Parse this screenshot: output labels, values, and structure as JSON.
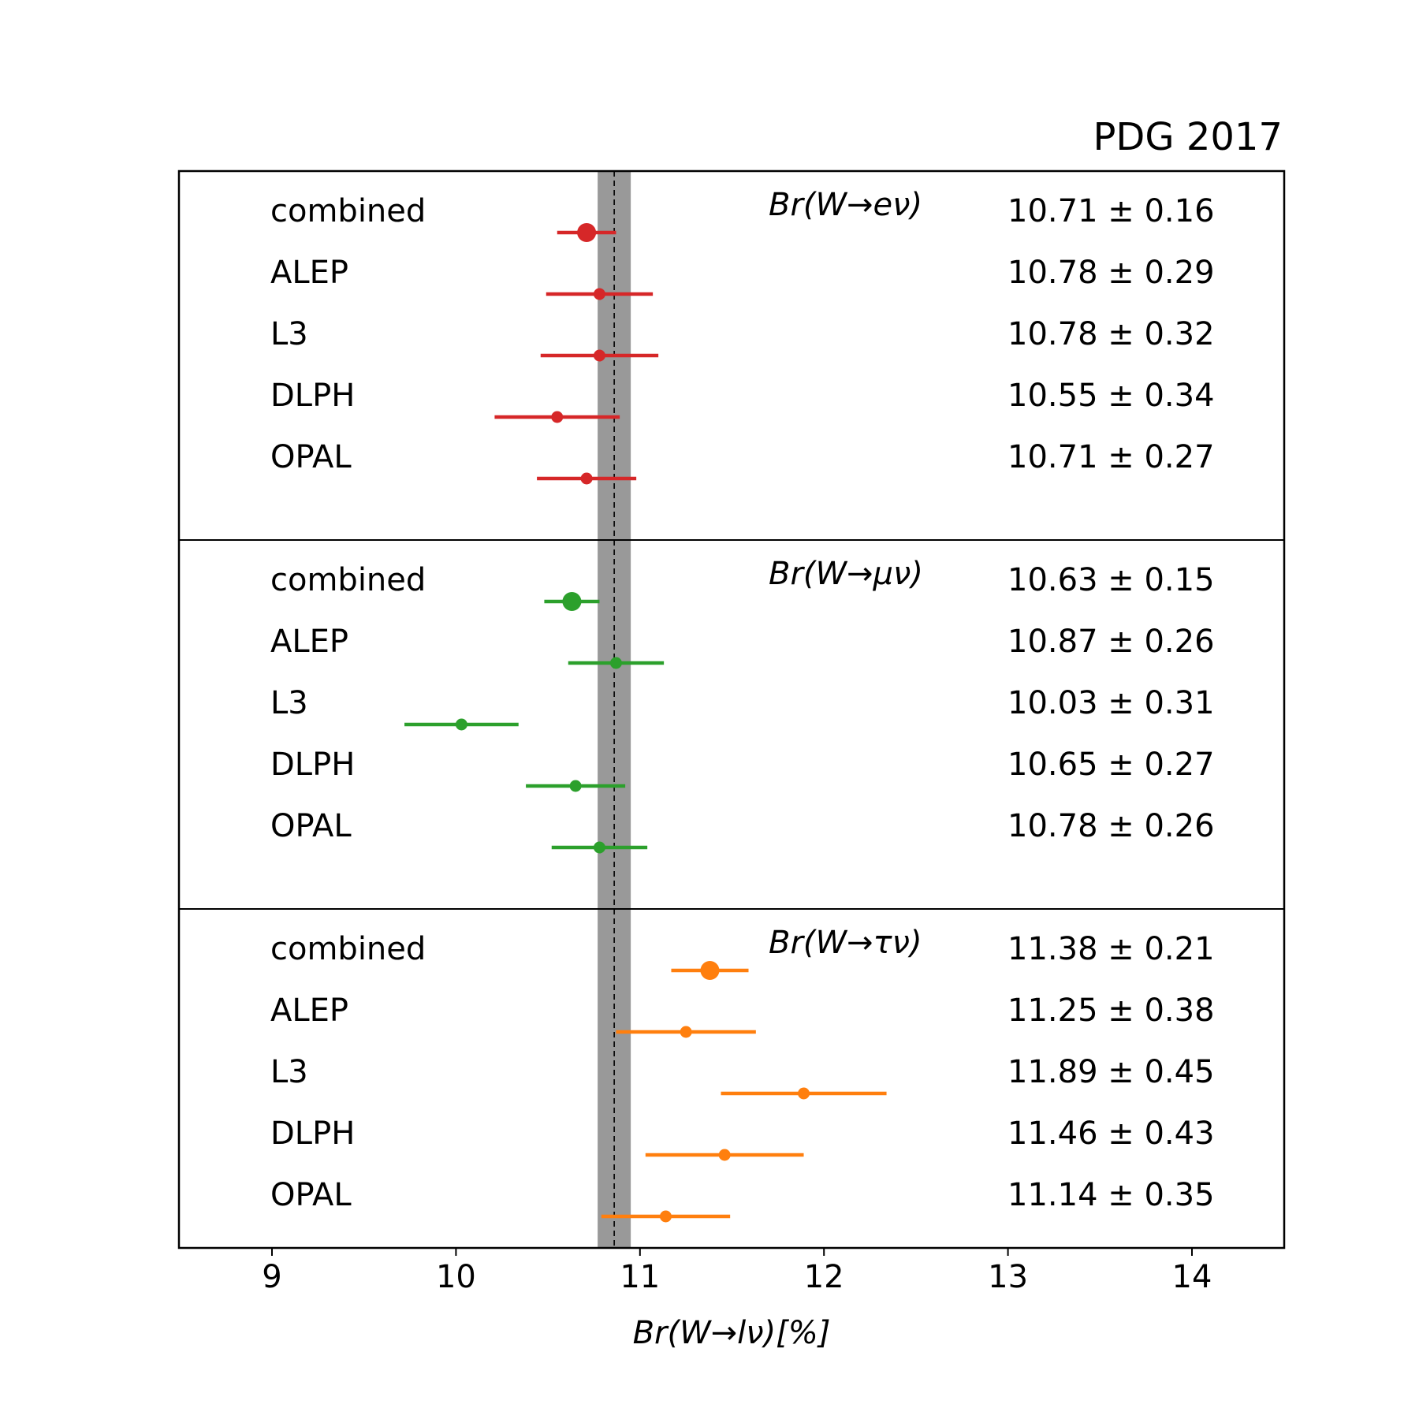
{
  "chart_data": {
    "type": "scatter",
    "title": "PDG 2017",
    "xlabel": "Br(W→lν)[%]",
    "xlim": [
      8.5,
      14.5
    ],
    "xticks": [
      9,
      10,
      11,
      12,
      13,
      14
    ],
    "reference_band": {
      "center": 10.86,
      "low": 10.77,
      "high": 10.95,
      "color": "#999999"
    },
    "grid": false,
    "panels": [
      {
        "label": "Br(W→eν)",
        "color": "#d62728",
        "entries": [
          {
            "name": "combined",
            "value": 10.71,
            "error": 0.16,
            "text": "10.71 ± 0.16"
          },
          {
            "name": "ALEP",
            "value": 10.78,
            "error": 0.29,
            "text": "10.78 ± 0.29"
          },
          {
            "name": "L3",
            "value": 10.78,
            "error": 0.32,
            "text": "10.78 ± 0.32"
          },
          {
            "name": "DLPH",
            "value": 10.55,
            "error": 0.34,
            "text": "10.55 ± 0.34"
          },
          {
            "name": "OPAL",
            "value": 10.71,
            "error": 0.27,
            "text": "10.71 ± 0.27"
          }
        ]
      },
      {
        "label": "Br(W→μν)",
        "color": "#2ca02c",
        "entries": [
          {
            "name": "combined",
            "value": 10.63,
            "error": 0.15,
            "text": "10.63 ± 0.15"
          },
          {
            "name": "ALEP",
            "value": 10.87,
            "error": 0.26,
            "text": "10.87 ± 0.26"
          },
          {
            "name": "L3",
            "value": 10.03,
            "error": 0.31,
            "text": "10.03 ± 0.31"
          },
          {
            "name": "DLPH",
            "value": 10.65,
            "error": 0.27,
            "text": "10.65 ± 0.27"
          },
          {
            "name": "OPAL",
            "value": 10.78,
            "error": 0.26,
            "text": "10.78 ± 0.26"
          }
        ]
      },
      {
        "label": "Br(W→τν)",
        "color": "#ff7f0e",
        "entries": [
          {
            "name": "combined",
            "value": 11.38,
            "error": 0.21,
            "text": "11.38 ± 0.21"
          },
          {
            "name": "ALEP",
            "value": 11.25,
            "error": 0.38,
            "text": "11.25 ± 0.38"
          },
          {
            "name": "L3",
            "value": 11.89,
            "error": 0.45,
            "text": "11.89 ± 0.45"
          },
          {
            "name": "DLPH",
            "value": 11.46,
            "error": 0.43,
            "text": "11.46 ± 0.43"
          },
          {
            "name": "OPAL",
            "value": 11.14,
            "error": 0.35,
            "text": "11.14 ± 0.35"
          }
        ]
      }
    ]
  }
}
